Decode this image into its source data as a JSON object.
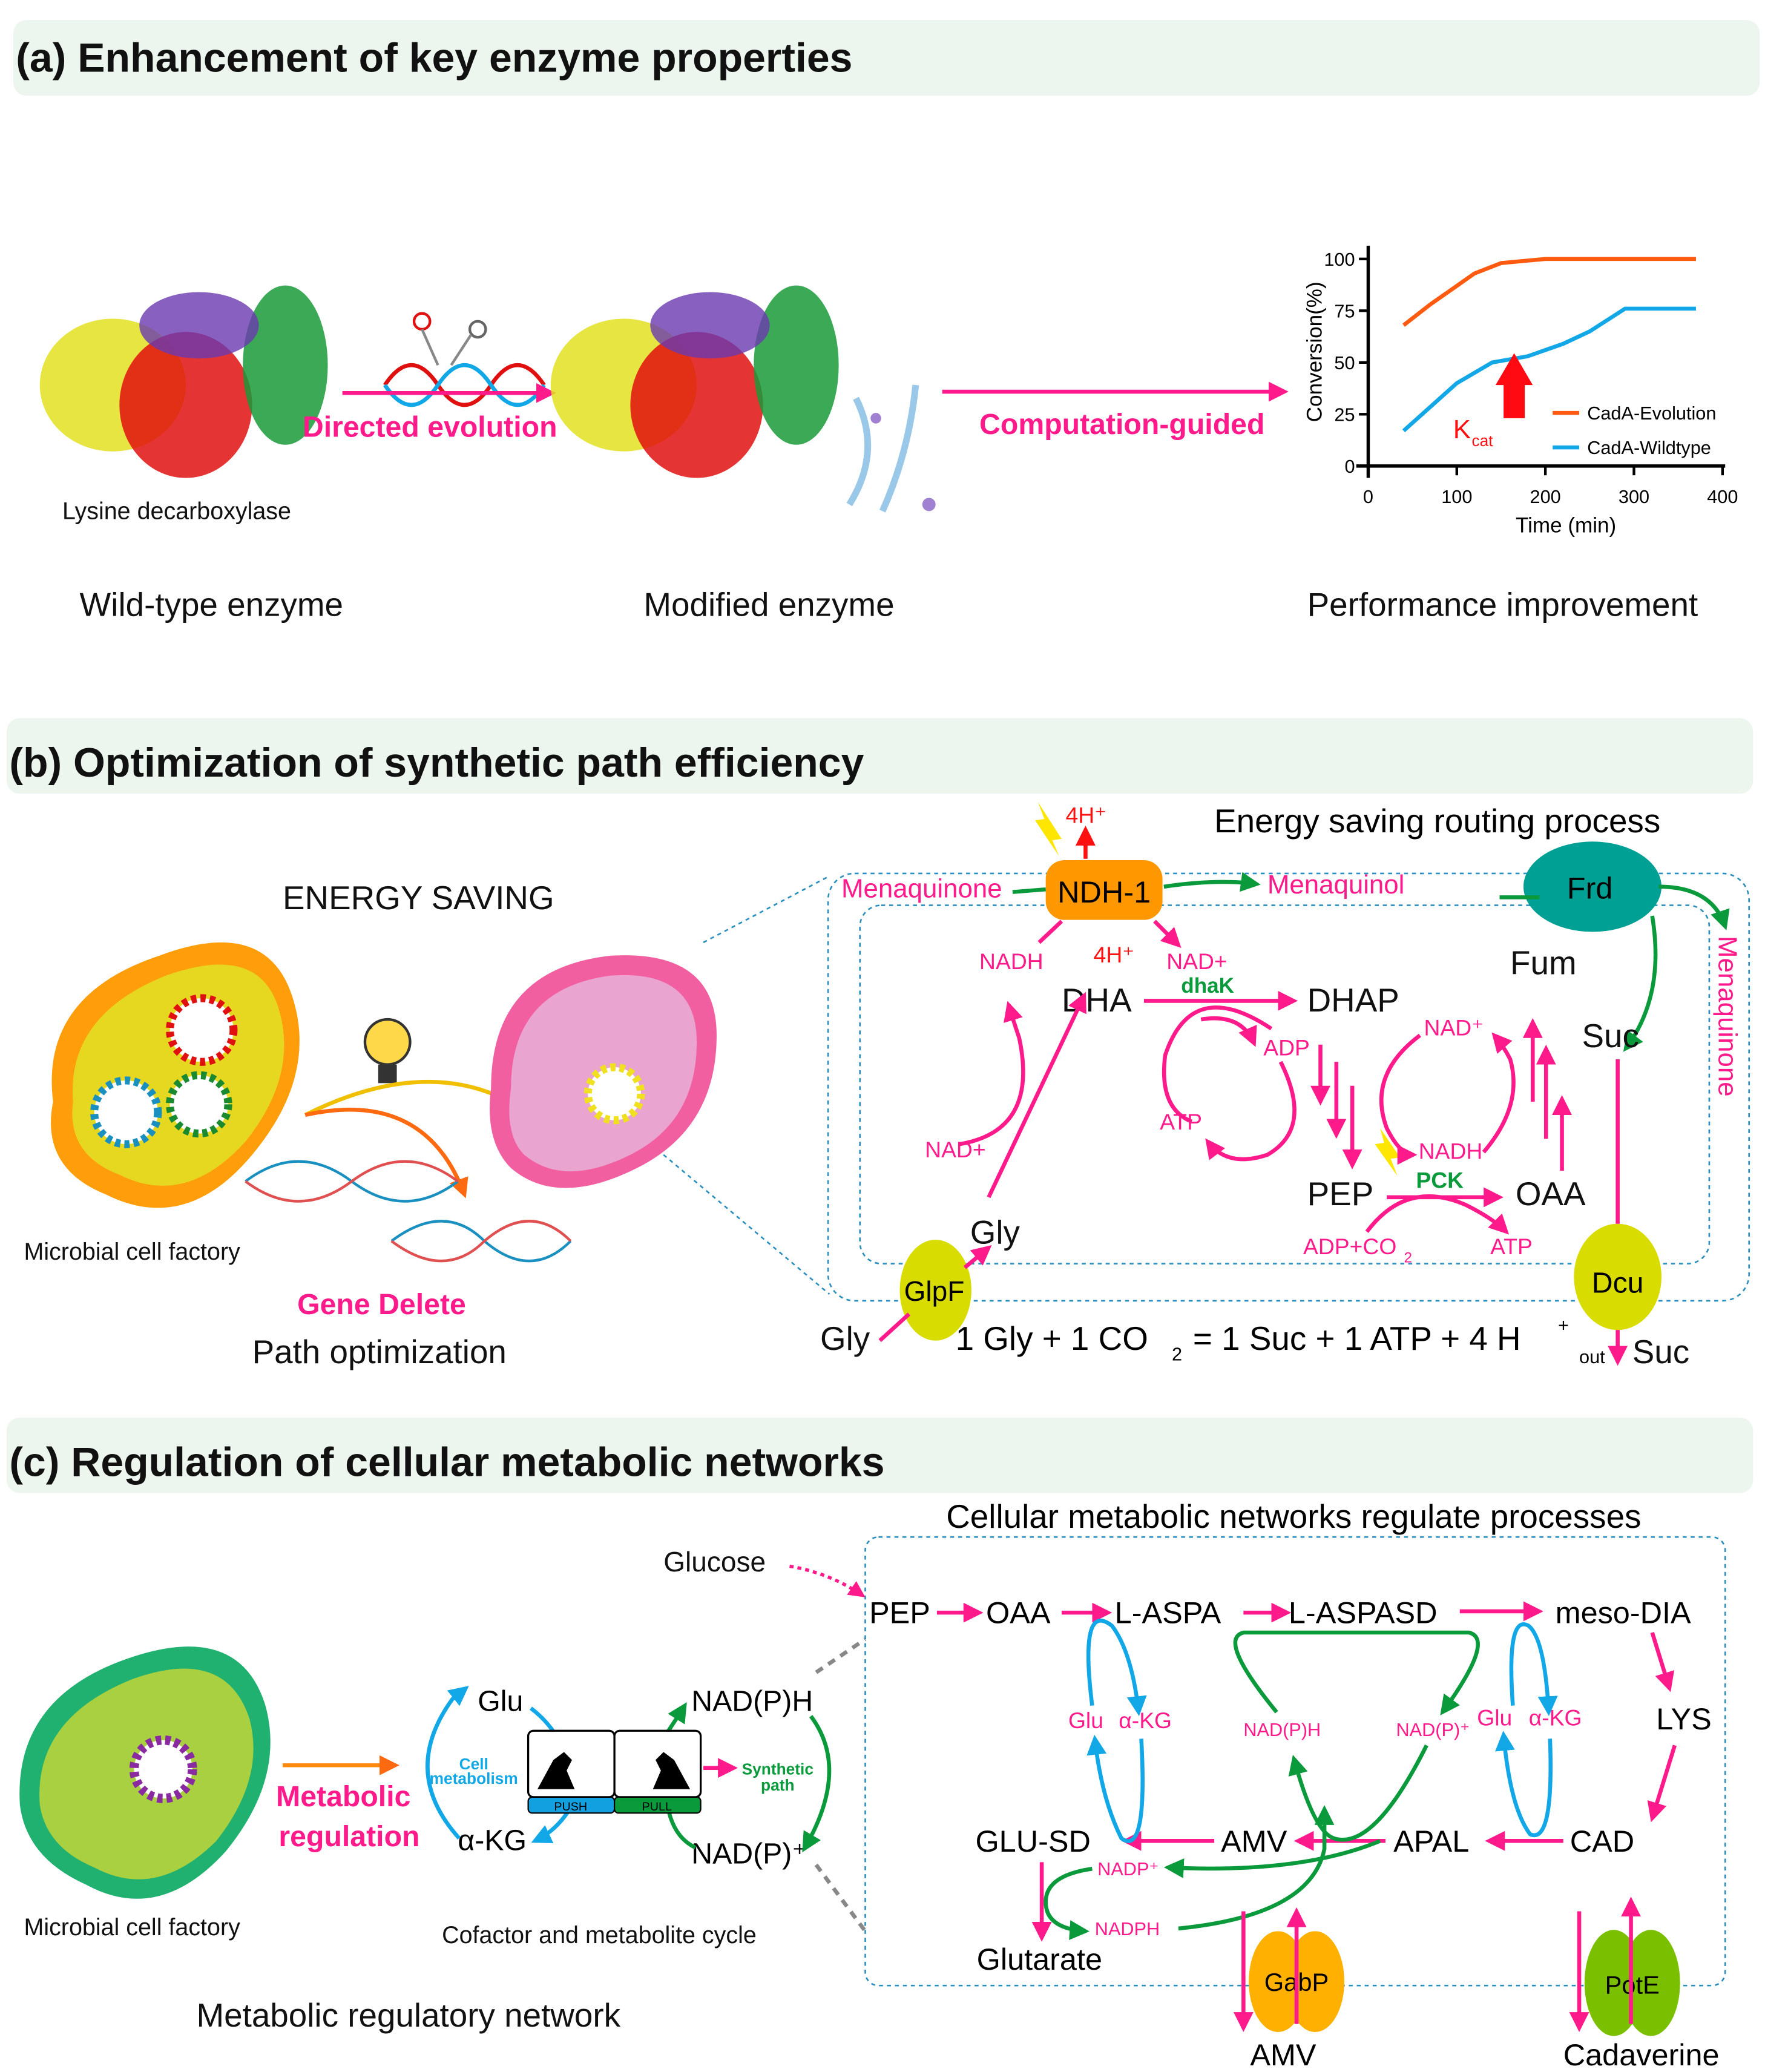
{
  "panel_a": {
    "title": "(a) Enhancement of key enzyme properties",
    "protein_label": "Lysine decarboxylase",
    "step1_label": "Directed evolution",
    "step2_label": "Computation-guided",
    "caption_wild": "Wild-type enzyme",
    "caption_modified": "Modified enzyme",
    "caption_performance": "Performance improvement",
    "kcat_main": "K",
    "kcat_sub": "cat"
  },
  "chart_data": {
    "type": "line",
    "xlabel": "Time (min)",
    "ylabel": "Conversion(%)",
    "xlim": [
      0,
      400
    ],
    "ylim": [
      0,
      100
    ],
    "xticks": [
      "0",
      "100",
      "200",
      "300",
      "400"
    ],
    "yticks": [
      "0",
      "25",
      "50",
      "75",
      "100"
    ],
    "grid": false,
    "legend": "bottom-right",
    "series": [
      {
        "name": "CadA-Evolution",
        "color": "#ff5a10",
        "x": [
          40,
          70,
          120,
          150,
          200,
          370
        ],
        "y": [
          68,
          78,
          93,
          98,
          100,
          100
        ]
      },
      {
        "name": "CadA-Wildtype",
        "color": "#12a7e6",
        "x": [
          40,
          100,
          140,
          180,
          220,
          250,
          290,
          370
        ],
        "y": [
          17,
          40,
          50,
          53,
          59,
          65,
          76,
          76
        ]
      }
    ]
  },
  "panel_b": {
    "title": "(b) Optimization of synthetic path efficiency",
    "energy_saving": "ENERGY SAVING",
    "cell_factory": "Microbial cell factory",
    "gene_delete": "Gene Delete",
    "path_optimization": "Path optimization",
    "routing_title": "Energy saving routing process",
    "nodes": {
      "ndh": "NDH-1",
      "frd": "Frd",
      "glpf": "GlpF",
      "dcu": "Dcu",
      "menaquinone_left": "Menaquinone",
      "menaquinol": "Menaquinol",
      "menaquinone_right": "Menaquinone",
      "h_top": "4H⁺",
      "h_bottom": "4H⁺",
      "nadh_top": "NADH",
      "nad_top": "NAD+",
      "dhak": "dhaK",
      "dha": "DHA",
      "dhap": "DHAP",
      "fum": "Fum",
      "suc": "Suc",
      "adp": "ADP",
      "atp": "ATP",
      "nad_plus": "NAD⁺",
      "nadh": "NADH",
      "nad_left": "NAD+",
      "pep": "PEP",
      "pck": "PCK",
      "oaa": "OAA",
      "adp_co2": "ADP+CO",
      "co2_sub": "2",
      "atp2": "ATP",
      "gly_in": "Gly",
      "gly_out": "Gly",
      "out": "out",
      "suc_out": "Suc"
    },
    "equation": {
      "part1": "1 Gly + 1 CO",
      "sub": "2",
      "part2": " = 1 Suc + 1 ATP + 4 H",
      "sup": "+"
    }
  },
  "panel_c": {
    "title": "(c) Regulation of cellular metabolic networks",
    "cell_factory": "Microbial cell factory",
    "metabolic_regulation_1": "Metabolic",
    "metabolic_regulation_2": "regulation",
    "network_caption": "Metabolic regulatory network",
    "cycle_caption": "Cofactor and metabolite cycle",
    "cycle": {
      "glu": "Glu",
      "akg": "α-KG",
      "nadph": "NAD(P)H",
      "nadp": "NAD(P)⁺",
      "cell1": "Cell",
      "cell2": "metabolism",
      "syn1": "Synthetic",
      "syn2": "path",
      "push": "PUSH",
      "pull": "PULL"
    },
    "network_title": "Cellular metabolic networks regulate processes",
    "nodes": {
      "glucose": "Glucose",
      "pep": "PEP",
      "oaa": "OAA",
      "laspa": "L-ASPA",
      "laspasd": "L-ASPASD",
      "mesodia": "meso-DIA",
      "lys": "LYS",
      "cad": "CAD",
      "apal": "APAL",
      "amv": "AMV",
      "glusd": "GLU-SD",
      "glutarate": "Glutarate",
      "glu1": "Glu",
      "akg1": "α-KG",
      "glu2": "Glu",
      "akg2": "α-KG",
      "napdh_mid": "NAD(P)H",
      "nadp_mid": "NAD(P)⁺",
      "nadp_plus": "NADP⁺",
      "nadph": "NADPH",
      "gabp": "GabP",
      "pote": "PotE",
      "amv_out": "AMV",
      "cadaverine": "Cadaverine"
    }
  }
}
